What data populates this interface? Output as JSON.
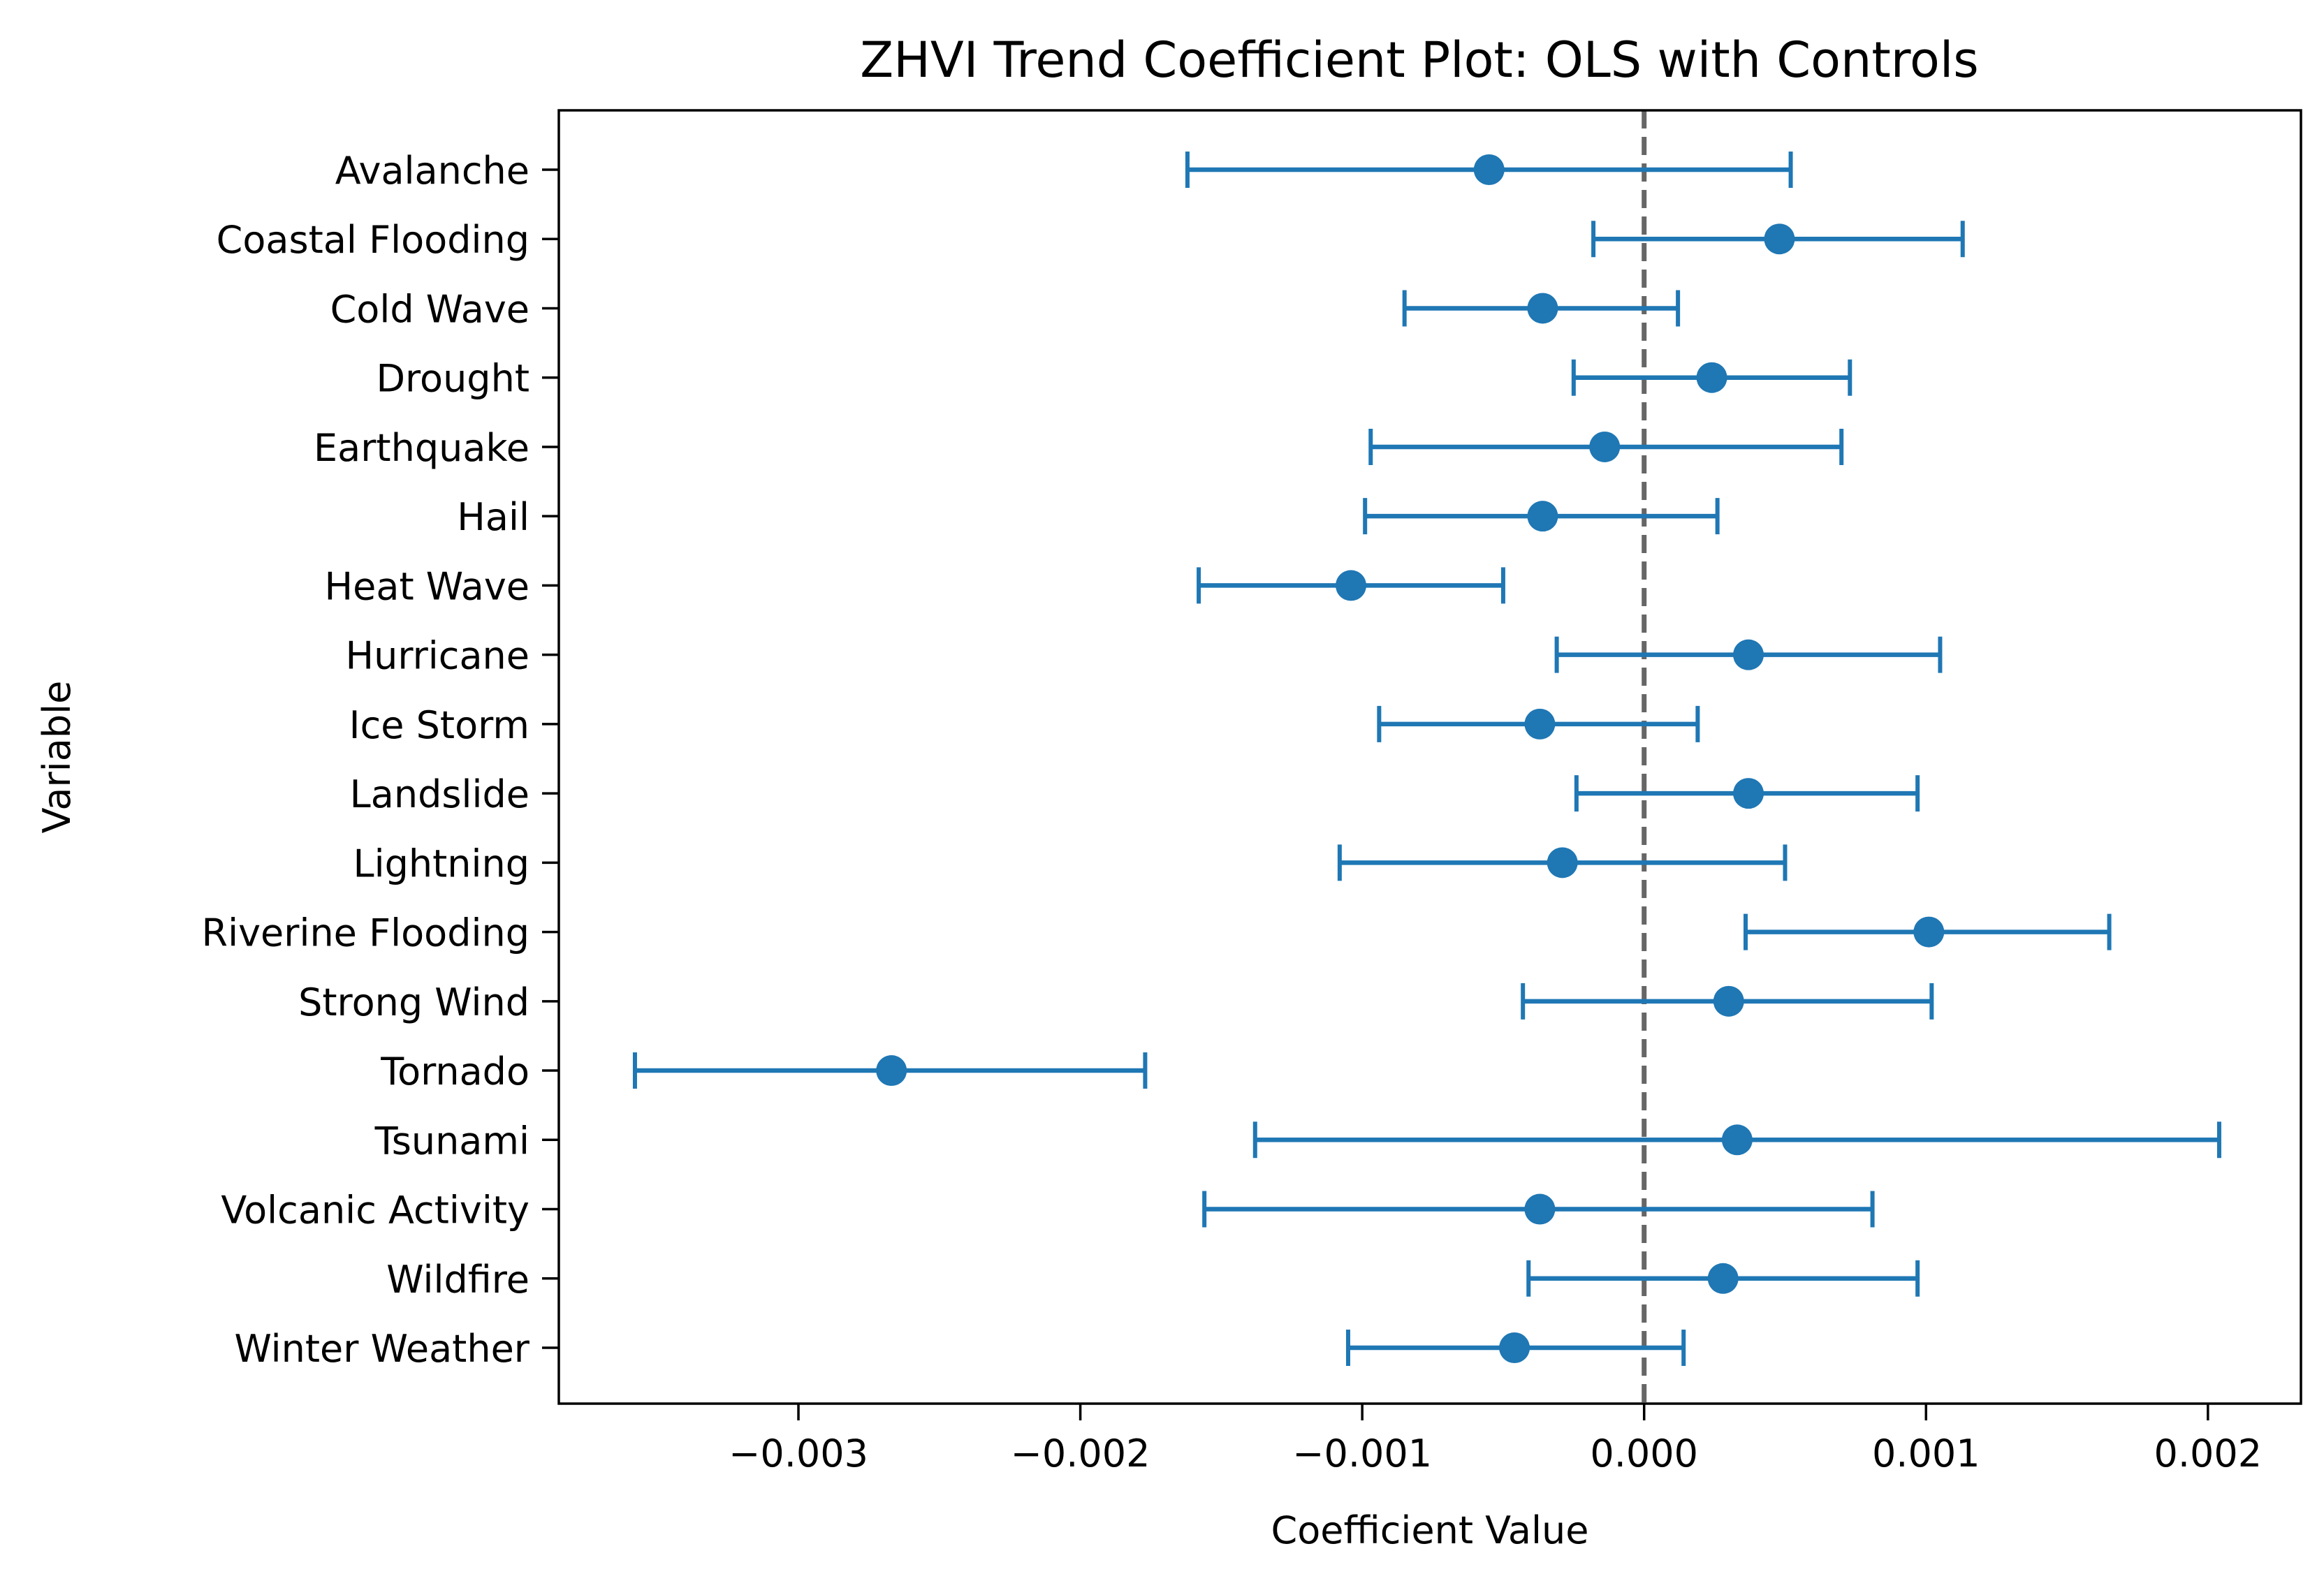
{
  "chart_data": {
    "type": "errorbar",
    "title": "ZHVI Trend Coefficient Plot: OLS with Controls",
    "xlabel": "Coefficient Value",
    "ylabel": "Variable",
    "xlim": [
      -0.00385,
      0.00233
    ],
    "xticks": [
      -0.003,
      -0.002,
      -0.001,
      0.0,
      0.001,
      0.002
    ],
    "xtick_labels": [
      "−0.003",
      "−0.002",
      "−0.001",
      "0.000",
      "0.001",
      "0.002"
    ],
    "reference_line": {
      "x": 0.0,
      "style": "dashed",
      "color": "#666666"
    },
    "grid": false,
    "colors": {
      "series": "#1f77b4"
    },
    "categories": [
      "Avalanche",
      "Coastal Flooding",
      "Cold Wave",
      "Drought",
      "Earthquake",
      "Hail",
      "Heat Wave",
      "Hurricane",
      "Ice Storm",
      "Landslide",
      "Lightning",
      "Riverine Flooding",
      "Strong Wind",
      "Tornado",
      "Tsunami",
      "Volcanic Activity",
      "Wildfire",
      "Winter Weather"
    ],
    "estimates": [
      -0.00055,
      0.00048,
      -0.00036,
      0.00024,
      -0.00014,
      -0.00036,
      -0.00104,
      0.00037,
      -0.00037,
      0.00037,
      -0.00029,
      0.00101,
      0.0003,
      -0.00267,
      0.00033,
      -0.00037,
      0.00028,
      -0.00046
    ],
    "ci_lower": [
      -0.00162,
      -0.00018,
      -0.00085,
      -0.00025,
      -0.00097,
      -0.00099,
      -0.00158,
      -0.00031,
      -0.00094,
      -0.00024,
      -0.00108,
      0.00036,
      -0.00043,
      -0.00358,
      -0.00138,
      -0.00156,
      -0.00041,
      -0.00105
    ],
    "ci_upper": [
      0.00052,
      0.00113,
      0.00012,
      0.00073,
      0.0007,
      0.00026,
      -0.0005,
      0.00105,
      0.00019,
      0.00097,
      0.0005,
      0.00165,
      0.00102,
      -0.00177,
      0.00204,
      0.00081,
      0.00097,
      0.00014
    ]
  }
}
